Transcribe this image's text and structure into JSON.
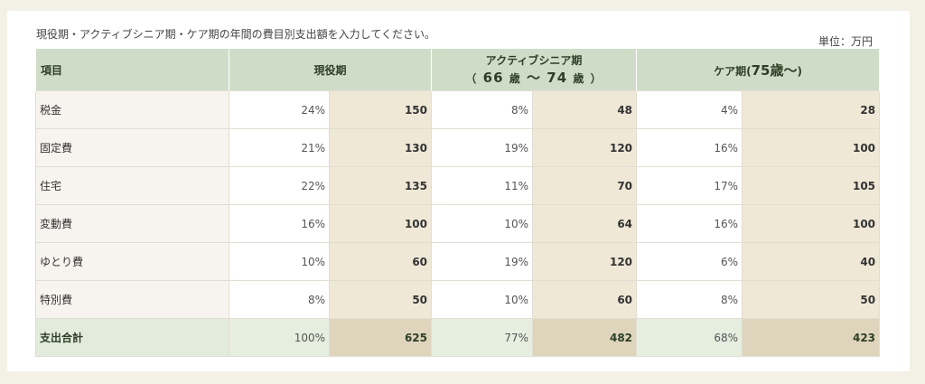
{
  "intro": "現役期・アクティブシニア期・ケア期の年間の費目別支出額を入力してください。",
  "unit": "単位：万円",
  "headers": {
    "item": "項目",
    "current": "現役期",
    "active": {
      "title": "アクティブシニア期",
      "open": "（",
      "from": "66",
      "sai1": "歳",
      "tilde": "〜",
      "to": "74",
      "sai2": "歳",
      "close": "）"
    },
    "care": {
      "prefix": "ケア期(",
      "age": "75歳〜",
      "suffix": ")"
    }
  },
  "rows": [
    {
      "label": "税金",
      "cur_pct": "24%",
      "cur_amt": "150",
      "act_pct": "8%",
      "act_amt": "48",
      "care_pct": "4%",
      "care_amt": "28"
    },
    {
      "label": "固定費",
      "cur_pct": "21%",
      "cur_amt": "130",
      "act_pct": "19%",
      "act_amt": "120",
      "care_pct": "16%",
      "care_amt": "100"
    },
    {
      "label": "住宅",
      "cur_pct": "22%",
      "cur_amt": "135",
      "act_pct": "11%",
      "act_amt": "70",
      "care_pct": "17%",
      "care_amt": "105"
    },
    {
      "label": "変動費",
      "cur_pct": "16%",
      "cur_amt": "100",
      "act_pct": "10%",
      "act_amt": "64",
      "care_pct": "16%",
      "care_amt": "100"
    },
    {
      "label": "ゆとり費",
      "cur_pct": "10%",
      "cur_amt": "60",
      "act_pct": "19%",
      "act_amt": "120",
      "care_pct": "6%",
      "care_amt": "40"
    },
    {
      "label": "特別費",
      "cur_pct": "8%",
      "cur_amt": "50",
      "act_pct": "10%",
      "act_amt": "60",
      "care_pct": "8%",
      "care_amt": "50"
    }
  ],
  "total": {
    "label": "支出合計",
    "cur_pct": "100%",
    "cur_amt": "625",
    "act_pct": "77%",
    "act_amt": "482",
    "care_pct": "68%",
    "care_amt": "423"
  }
}
